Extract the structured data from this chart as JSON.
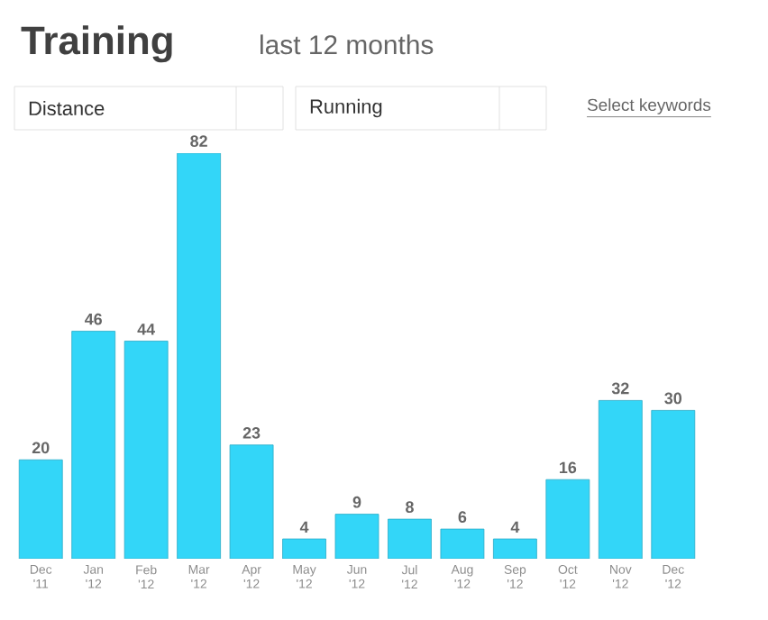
{
  "chart_data": {
    "type": "bar",
    "title": "Training",
    "subtitle": "last 12 months",
    "annotations": [
      "Distance",
      "Running",
      "Select keywords"
    ],
    "categories": [
      "Dec '11",
      "Jan '12",
      "Feb '12",
      "Mar '12",
      "Apr '12",
      "May '12",
      "Jun '12",
      "Jul '12",
      "Aug '12",
      "Sep '12",
      "Oct '12",
      "Nov '12",
      "Dec '12"
    ],
    "values": [
      20,
      46,
      44,
      82,
      23,
      4,
      9,
      8,
      6,
      4,
      16,
      32,
      30
    ],
    "color": "#33d6f8",
    "data_labels": true
  }
}
